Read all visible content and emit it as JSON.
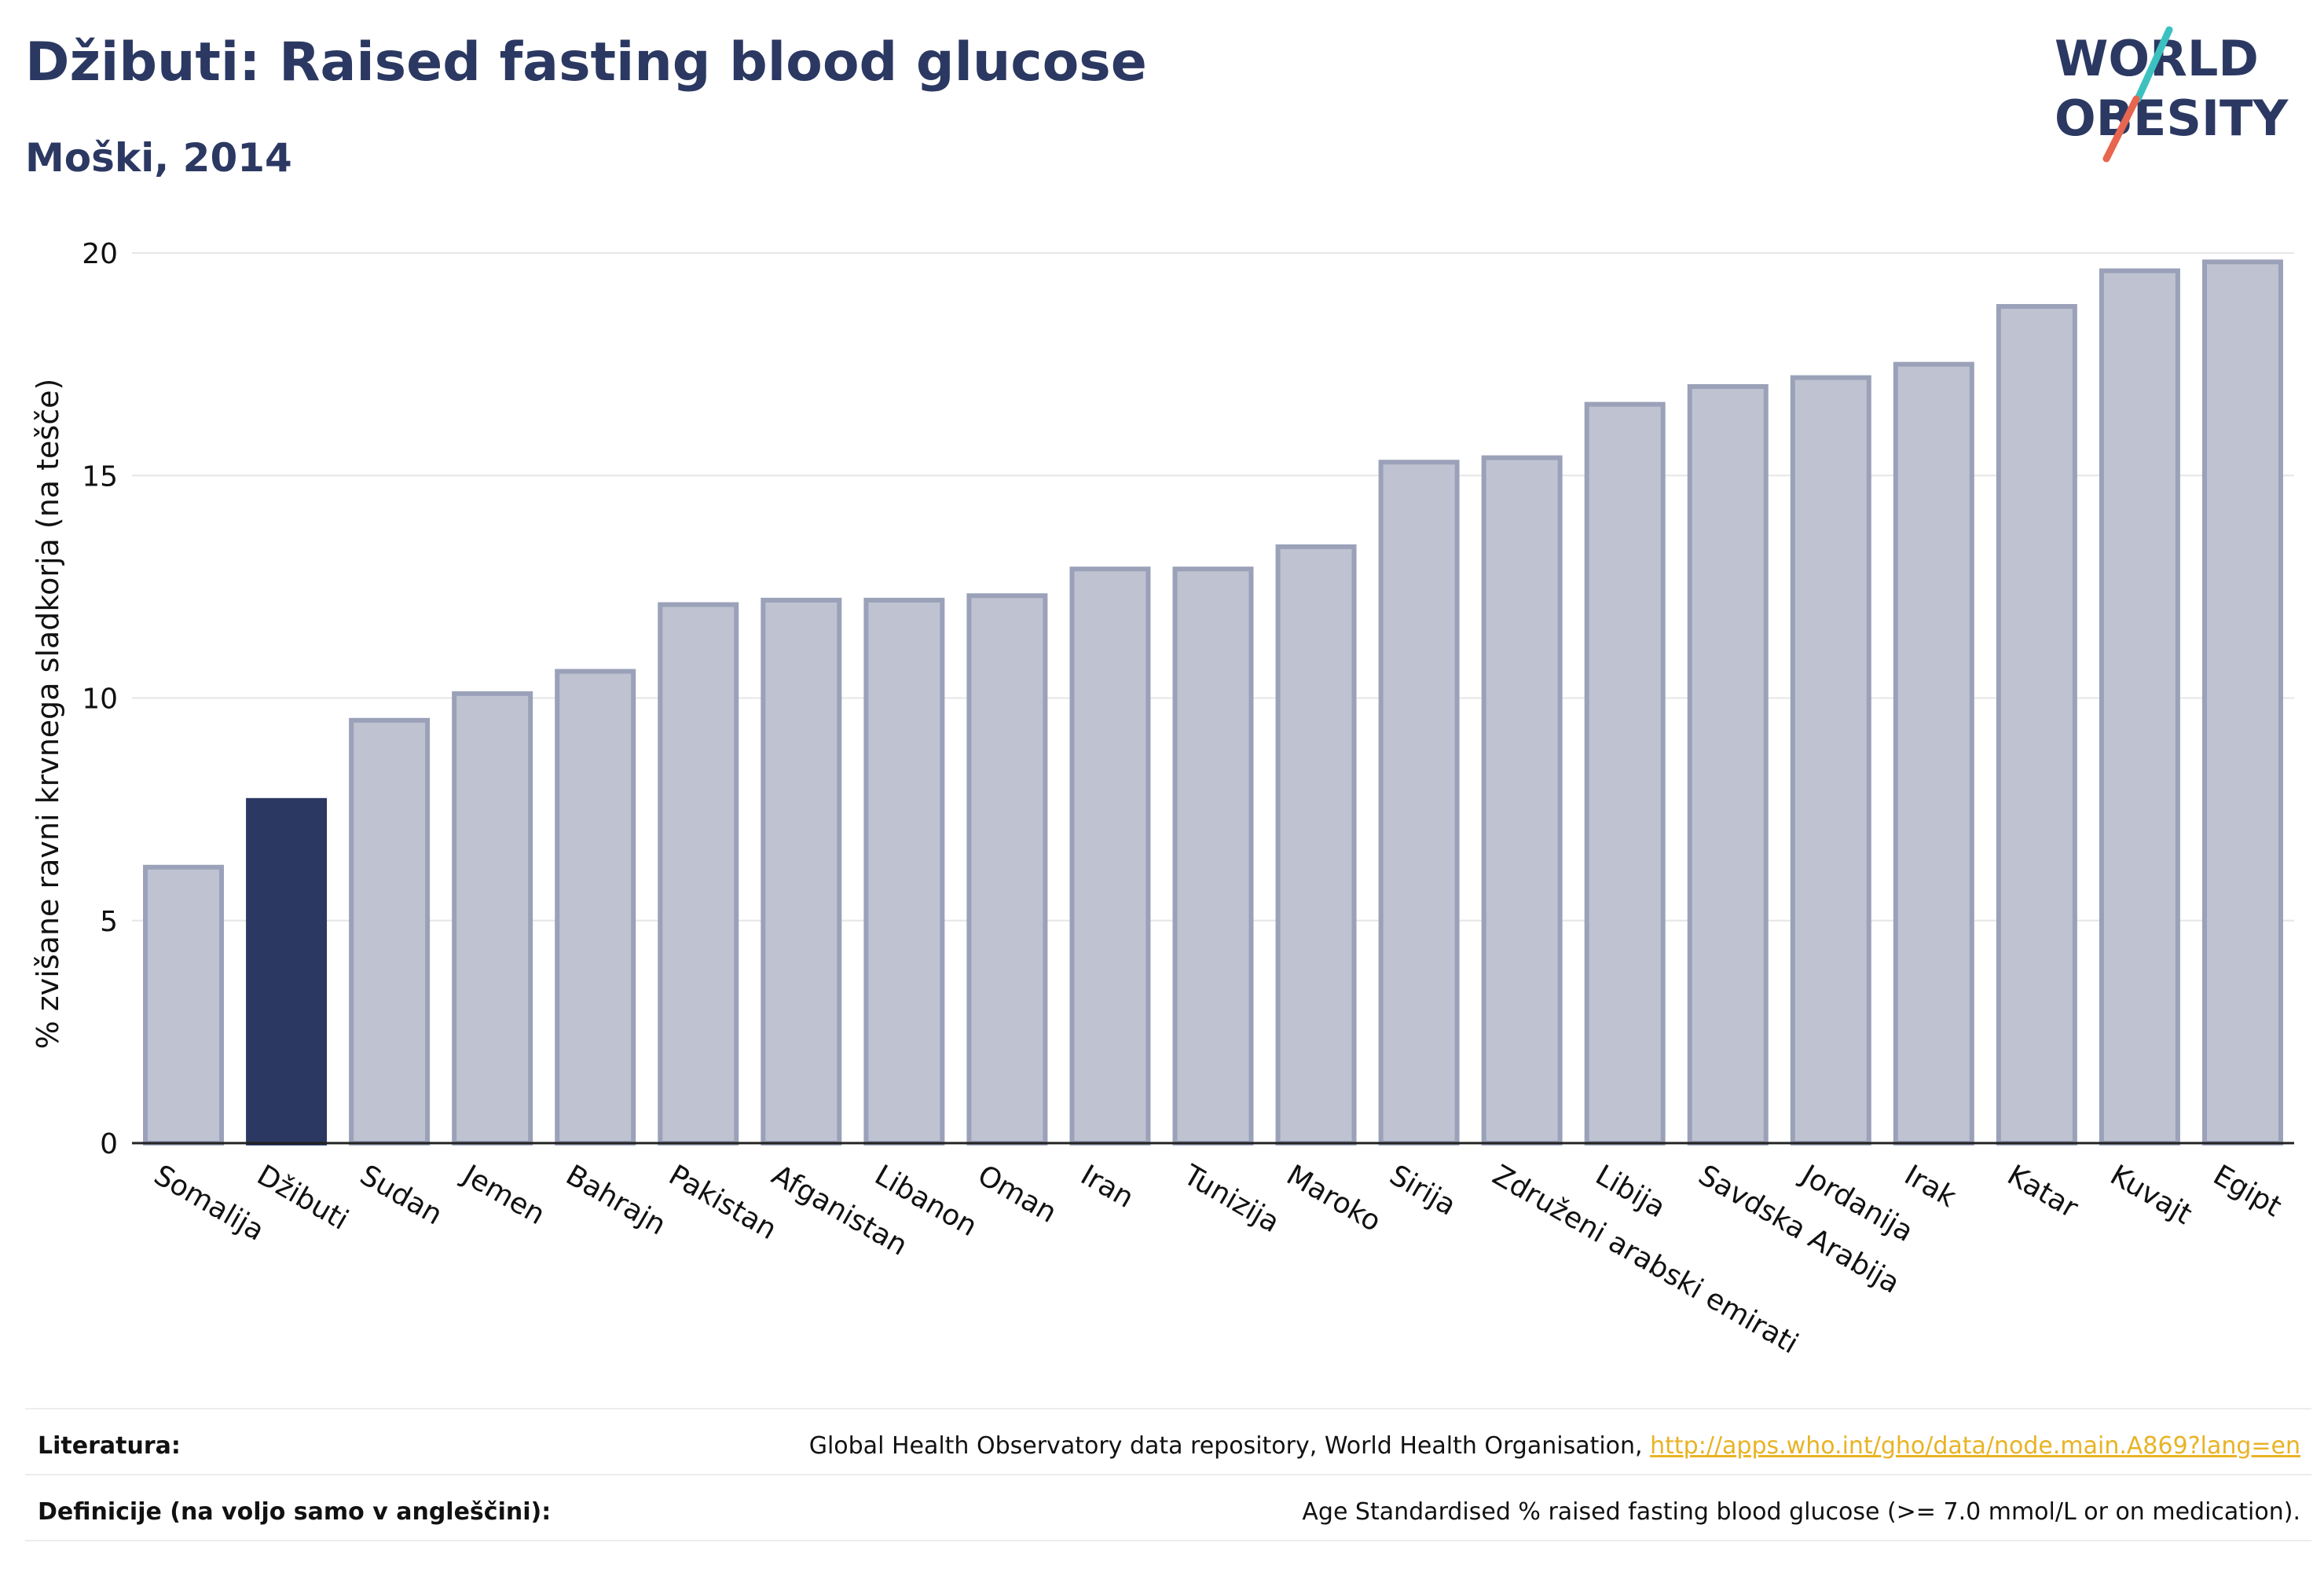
{
  "title": "Džibuti: Raised fasting blood glucose",
  "subtitle": "Moški, 2014",
  "logo": {
    "line1": "WORLD",
    "line2": "OBESITY",
    "colors": [
      "#2b3862",
      "#3cc1c0",
      "#e8664f"
    ]
  },
  "chart_data": {
    "type": "bar",
    "ylabel": "% zvišane ravni krvnega sladkorja (na tešče)",
    "xlabel": "",
    "ylim": [
      0,
      20
    ],
    "yticks": [
      0,
      5,
      10,
      15,
      20
    ],
    "grid": true,
    "highlight": "Džibuti",
    "colors": {
      "bar": "#bfc3d1",
      "bar_border": "#9aa1b8",
      "highlight": "#2b3862"
    },
    "categories": [
      "Somalija",
      "Džibuti",
      "Sudan",
      "Jemen",
      "Bahrajn",
      "Pakistan",
      "Afganistan",
      "Libanon",
      "Oman",
      "Iran",
      "Tunizija",
      "Maroko",
      "Sirija",
      "Združeni arabski emirati",
      "Libija",
      "Savdska Arabija",
      "Jordanija",
      "Irak",
      "Katar",
      "Kuvajt",
      "Egipt"
    ],
    "values": [
      6.2,
      7.7,
      9.5,
      10.1,
      10.6,
      12.1,
      12.2,
      12.2,
      12.3,
      12.9,
      12.9,
      13.4,
      15.3,
      15.4,
      16.6,
      17.0,
      17.2,
      17.5,
      18.8,
      19.6,
      19.8
    ]
  },
  "footer": {
    "sources_label": "Literatura:",
    "sources_text": "Global Health Observatory data repository, World Health Organisation,",
    "sources_link": "http://apps.who.int/gho/data/node.main.A869?lang=en",
    "definitions_label": "Definicije (na voljo samo v angleščini):",
    "definitions_text": "Age Standardised % raised fasting blood glucose (>= 7.0 mmol/L or on medication)."
  }
}
